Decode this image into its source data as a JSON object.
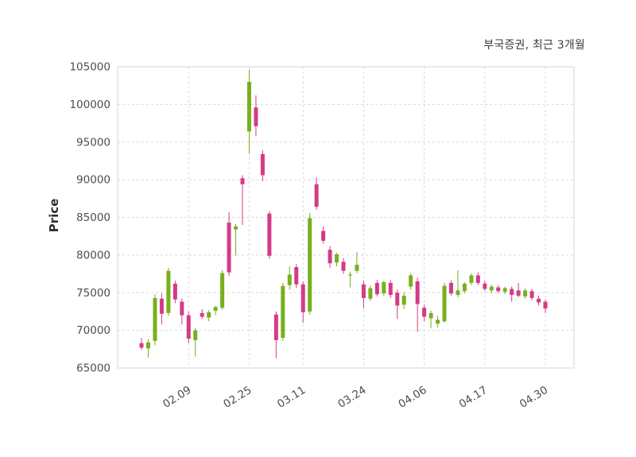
{
  "header": {
    "title": "부국증권, 최근 3개월"
  },
  "chart_data": {
    "type": "candlestick",
    "title": "부국증권, 최근 3개월",
    "xlabel": "",
    "ylabel": "Price",
    "ylim": [
      65000,
      105000
    ],
    "y_ticks": [
      65000,
      70000,
      75000,
      80000,
      85000,
      90000,
      95000,
      100000,
      105000
    ],
    "x_tick_labels": [
      "02.09",
      "02.25",
      "03.11",
      "03.24",
      "04.06",
      "04.17",
      "04.30"
    ],
    "x_tick_indices": [
      7,
      16,
      24,
      33,
      42,
      51,
      60
    ],
    "grid": "dashed",
    "legend": "none",
    "up_color": "#77B01E",
    "down_color": "#D53A85",
    "candles_format": [
      "open",
      "high",
      "low",
      "close"
    ],
    "candles": [
      [
        68300,
        69000,
        67400,
        67700
      ],
      [
        67600,
        68800,
        66400,
        68400
      ],
      [
        68600,
        74800,
        68000,
        74300
      ],
      [
        74200,
        74900,
        70800,
        72200
      ],
      [
        72300,
        78300,
        71900,
        77900
      ],
      [
        76200,
        76600,
        73600,
        74100
      ],
      [
        73800,
        74200,
        70800,
        72000
      ],
      [
        72000,
        72500,
        68300,
        68900
      ],
      [
        68700,
        70300,
        66500,
        70000
      ],
      [
        72300,
        72800,
        71500,
        71800
      ],
      [
        71700,
        72700,
        71200,
        72400
      ],
      [
        72600,
        73300,
        72000,
        73100
      ],
      [
        73000,
        78000,
        72700,
        77600
      ],
      [
        84300,
        85700,
        77200,
        77700
      ],
      [
        83400,
        84100,
        79900,
        83800
      ],
      [
        90200,
        90600,
        84000,
        89400
      ],
      [
        96400,
        104600,
        93500,
        103000
      ],
      [
        99600,
        101200,
        95800,
        97100
      ],
      [
        93400,
        93900,
        89800,
        90600
      ],
      [
        85500,
        85800,
        79500,
        79900
      ],
      [
        72100,
        72500,
        66300,
        68700
      ],
      [
        69000,
        76300,
        68600,
        75900
      ],
      [
        76000,
        78500,
        75400,
        77400
      ],
      [
        78400,
        78800,
        75600,
        76100
      ],
      [
        76100,
        76500,
        71000,
        72400
      ],
      [
        72500,
        85600,
        72100,
        84900
      ],
      [
        89400,
        90300,
        86000,
        86400
      ],
      [
        83200,
        83800,
        81500,
        81900
      ],
      [
        80700,
        81200,
        78300,
        78900
      ],
      [
        79000,
        80300,
        78500,
        80100
      ],
      [
        79100,
        79600,
        77500,
        77900
      ],
      [
        77300,
        77800,
        75700,
        77400
      ],
      [
        77900,
        80400,
        77600,
        78700
      ],
      [
        76100,
        76600,
        72900,
        74300
      ],
      [
        74200,
        76000,
        73900,
        75600
      ],
      [
        76300,
        76700,
        74500,
        74800
      ],
      [
        74900,
        76600,
        74600,
        76400
      ],
      [
        76300,
        76700,
        74300,
        74700
      ],
      [
        75000,
        75400,
        71500,
        73300
      ],
      [
        73400,
        75100,
        72800,
        74600
      ],
      [
        75800,
        77600,
        75400,
        77300
      ],
      [
        76500,
        77000,
        69800,
        73500
      ],
      [
        73000,
        73400,
        71200,
        71800
      ],
      [
        71600,
        72600,
        70300,
        72300
      ],
      [
        70900,
        71900,
        70400,
        71400
      ],
      [
        71200,
        76300,
        71000,
        75900
      ],
      [
        76300,
        76600,
        74600,
        74900
      ],
      [
        74700,
        78000,
        74400,
        75300
      ],
      [
        75200,
        76400,
        74900,
        76200
      ],
      [
        76300,
        77600,
        76000,
        77300
      ],
      [
        77300,
        77700,
        76000,
        76300
      ],
      [
        76200,
        76600,
        75200,
        75500
      ],
      [
        75300,
        76100,
        74900,
        75800
      ],
      [
        75700,
        76000,
        74900,
        75200
      ],
      [
        75100,
        75800,
        74800,
        75600
      ],
      [
        75500,
        75800,
        73800,
        74700
      ],
      [
        75300,
        76300,
        74400,
        74600
      ],
      [
        74500,
        75600,
        74200,
        75300
      ],
      [
        75200,
        75500,
        74000,
        74300
      ],
      [
        74200,
        74600,
        73300,
        73700
      ],
      [
        73800,
        74100,
        72300,
        72900
      ]
    ]
  }
}
